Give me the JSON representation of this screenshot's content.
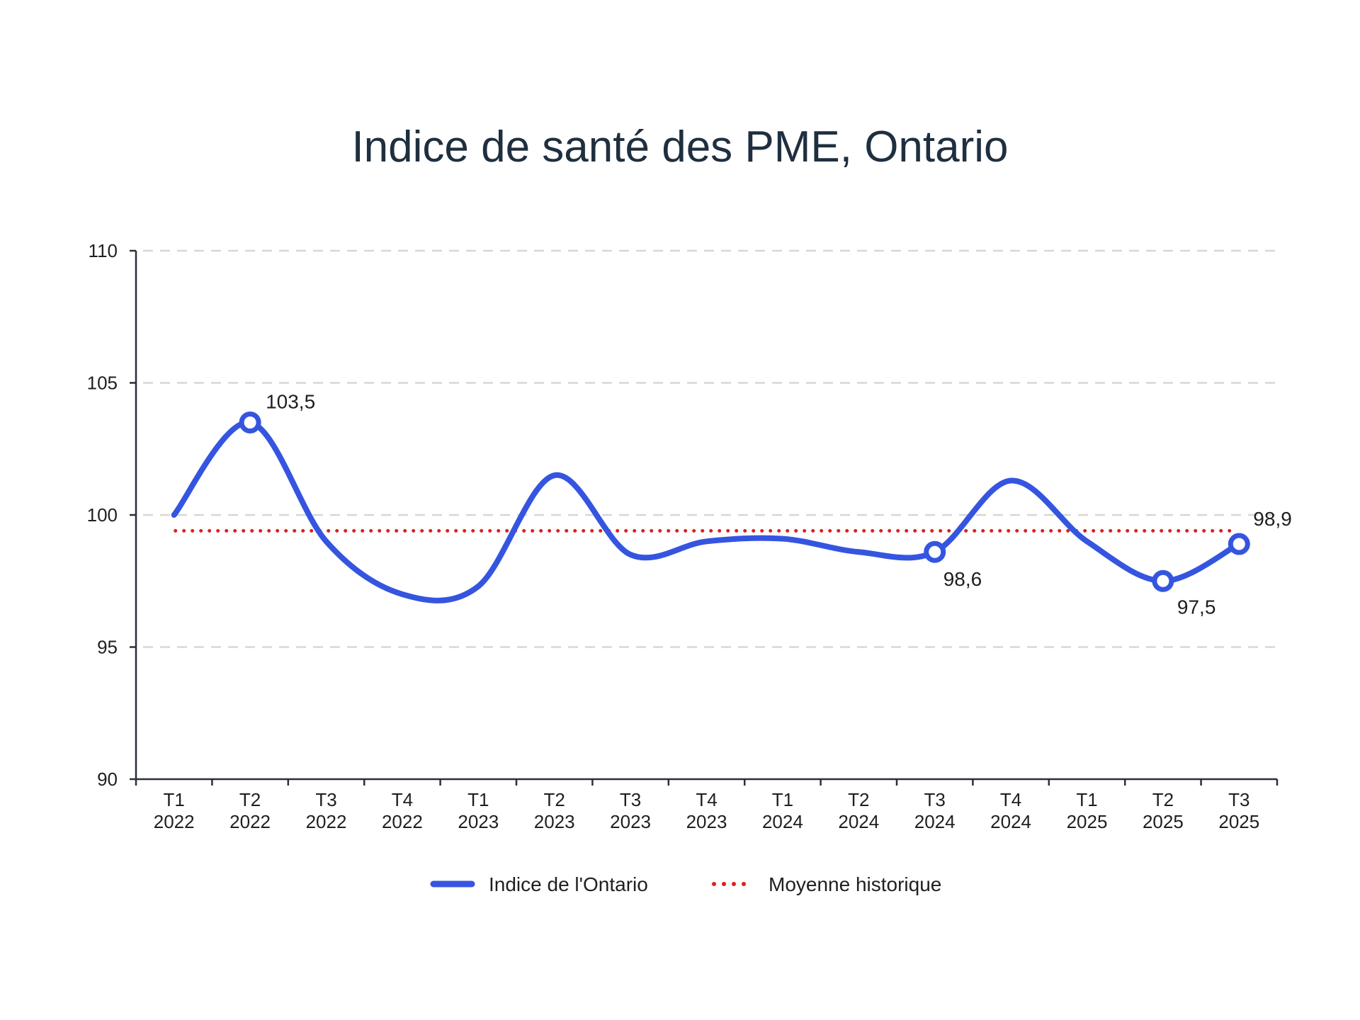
{
  "chart_data": {
    "type": "line",
    "title": "Indice de santé des PME, Ontario",
    "xlabel": "",
    "ylabel": "",
    "ylim": [
      90,
      110
    ],
    "yticks": [
      90,
      95,
      100,
      105,
      110
    ],
    "categories": [
      {
        "quarter": "T1",
        "year": "2022"
      },
      {
        "quarter": "T2",
        "year": "2022"
      },
      {
        "quarter": "T3",
        "year": "2022"
      },
      {
        "quarter": "T4",
        "year": "2022"
      },
      {
        "quarter": "T1",
        "year": "2023"
      },
      {
        "quarter": "T2",
        "year": "2023"
      },
      {
        "quarter": "T3",
        "year": "2023"
      },
      {
        "quarter": "T4",
        "year": "2023"
      },
      {
        "quarter": "T1",
        "year": "2024"
      },
      {
        "quarter": "T2",
        "year": "2024"
      },
      {
        "quarter": "T3",
        "year": "2024"
      },
      {
        "quarter": "T4",
        "year": "2024"
      },
      {
        "quarter": "T1",
        "year": "2025"
      },
      {
        "quarter": "T2",
        "year": "2025"
      },
      {
        "quarter": "T3",
        "year": "2025"
      }
    ],
    "series": [
      {
        "name": "Indice de l'Ontario",
        "color": "#3555e0",
        "style": "solid",
        "values": [
          100.0,
          103.5,
          99.0,
          97.0,
          97.3,
          101.5,
          98.5,
          99.0,
          99.1,
          98.6,
          98.6,
          101.3,
          99.0,
          97.5,
          98.9
        ],
        "highlighted_points": [
          {
            "index": 1,
            "label": "103,5"
          },
          {
            "index": 10,
            "label": "98,6"
          },
          {
            "index": 13,
            "label": "97,5"
          },
          {
            "index": 14,
            "label": "98,9"
          }
        ]
      },
      {
        "name": "Moyenne historique",
        "color": "#e01e1e",
        "style": "dotted",
        "value": 99.4
      }
    ],
    "grid": true,
    "legend": "bottom-center"
  }
}
